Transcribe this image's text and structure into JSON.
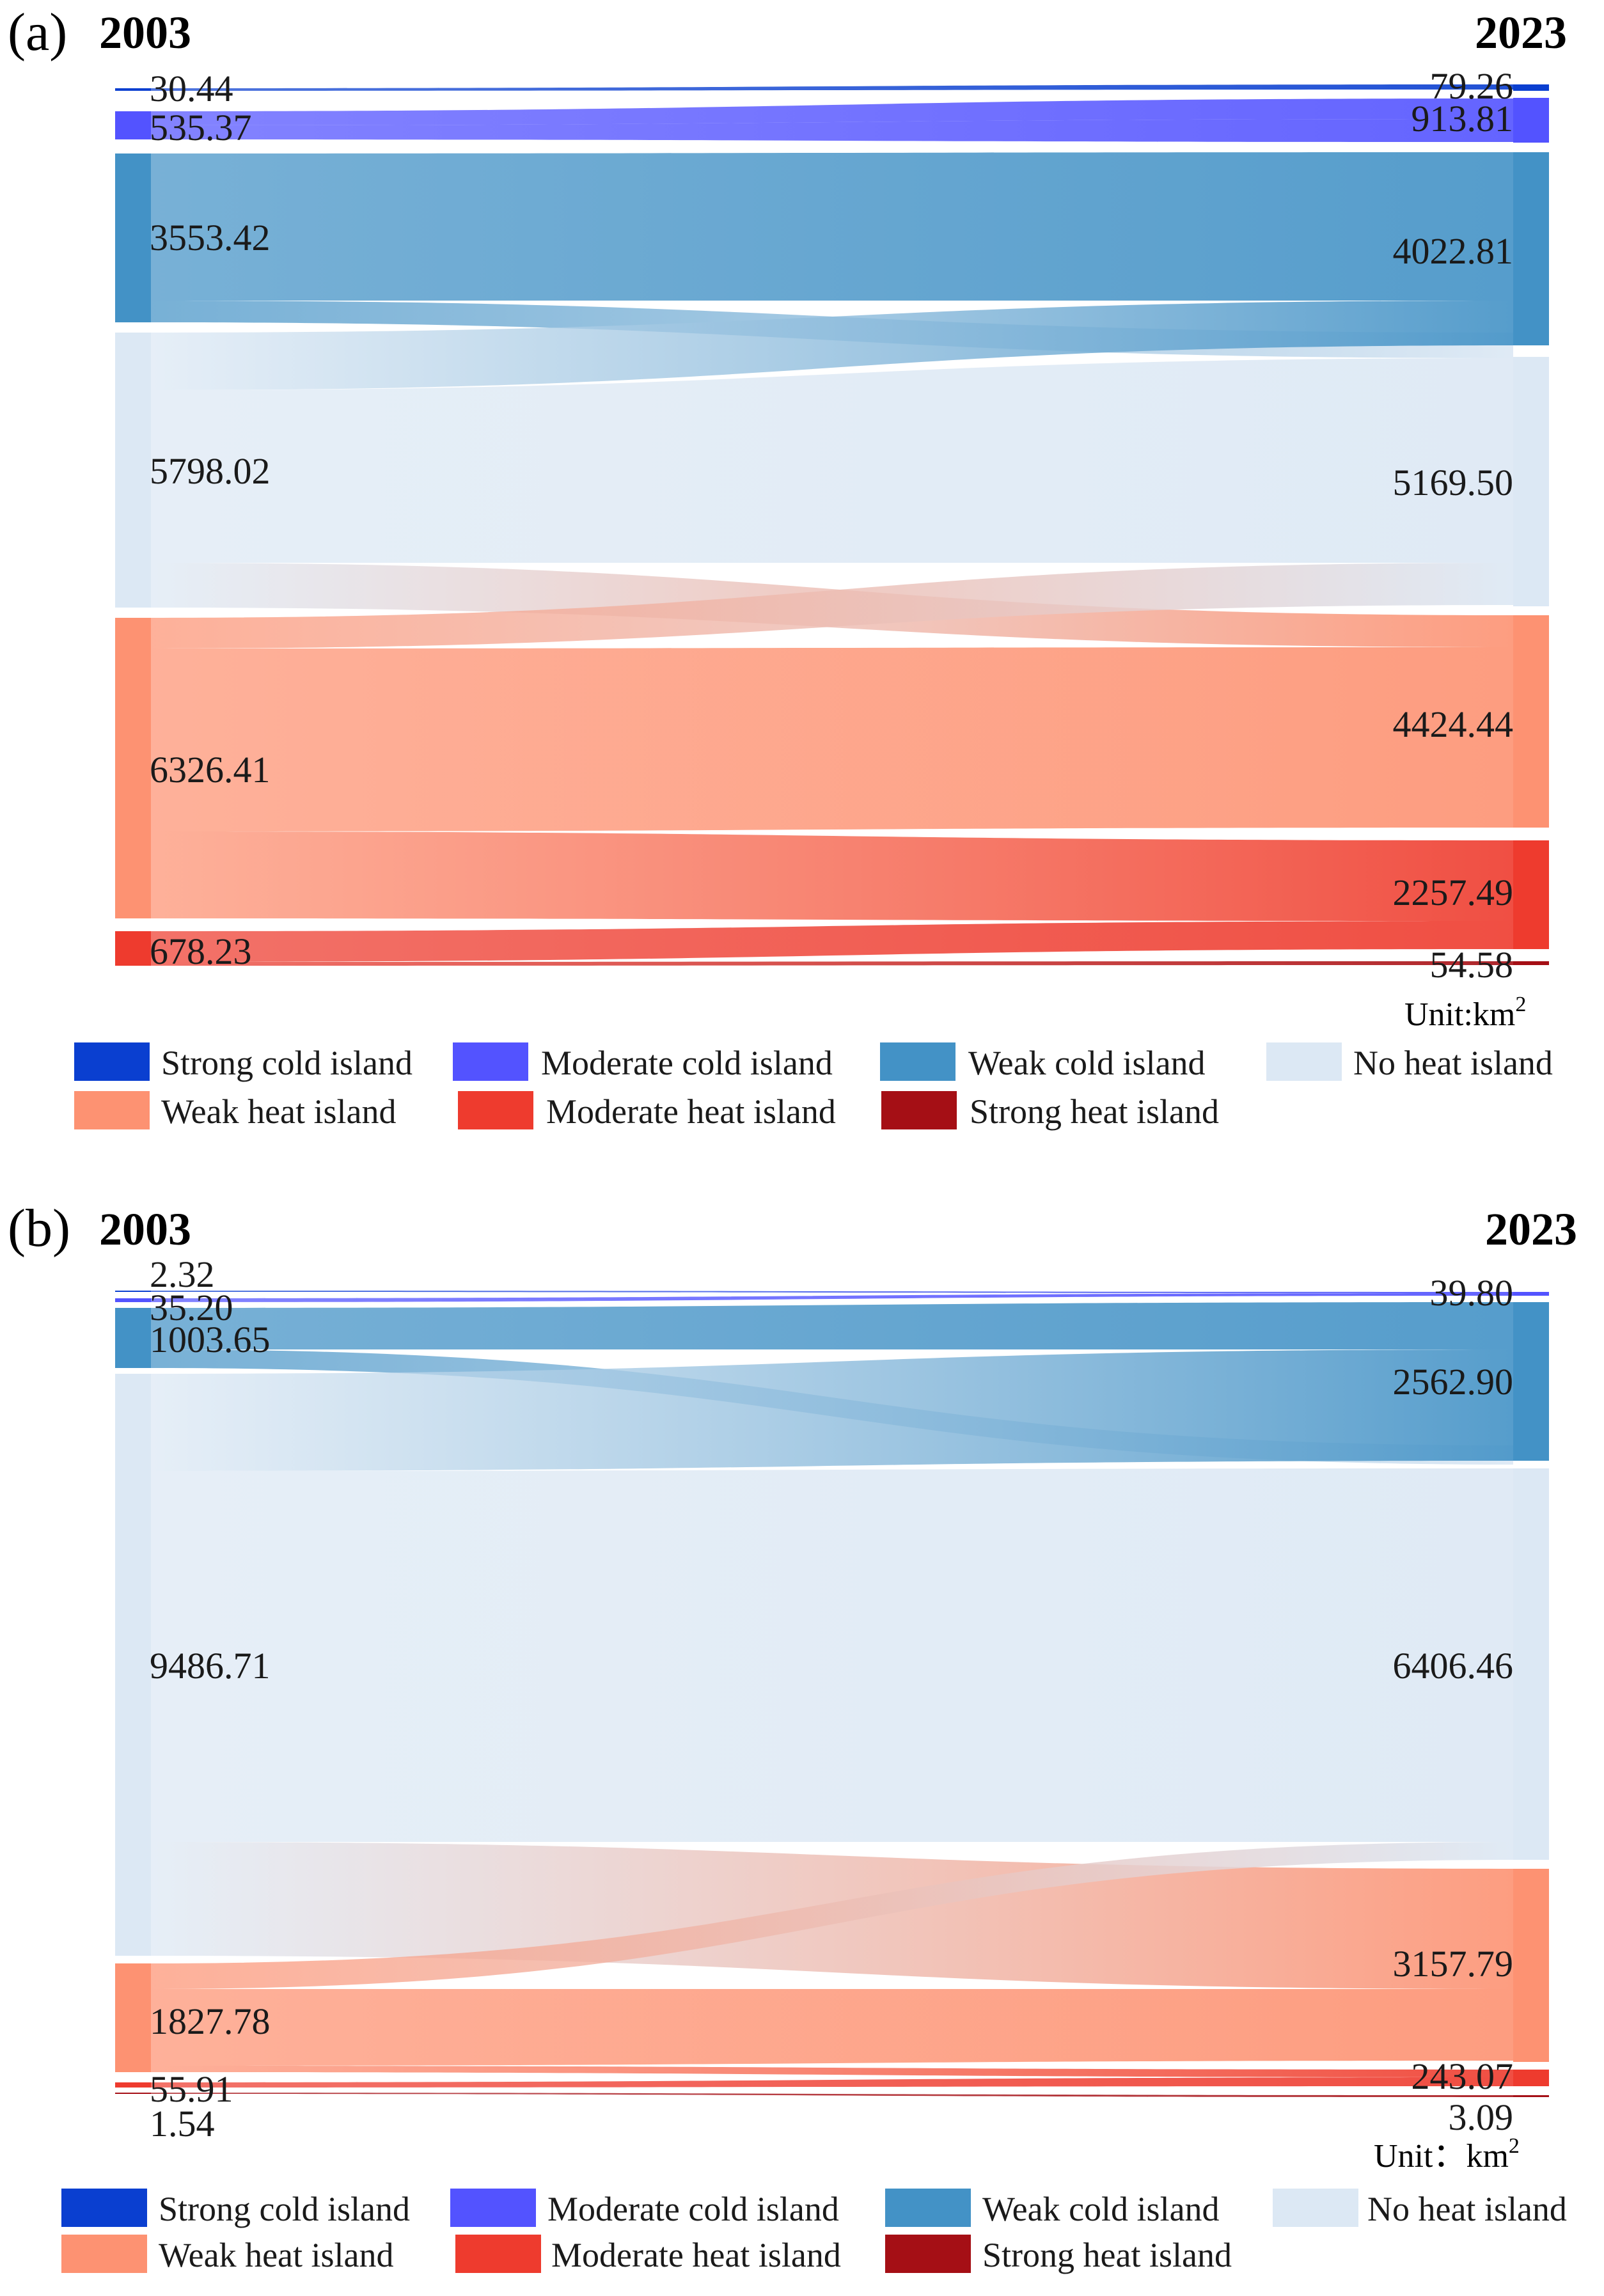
{
  "categories": [
    {
      "key": "strong_cold",
      "label": "Strong cold island",
      "color": "#0a3fd0"
    },
    {
      "key": "moderate_cold",
      "label": "Moderate cold island",
      "color": "#5353ff"
    },
    {
      "key": "weak_cold",
      "label": "Weak cold island",
      "color": "#4392c6"
    },
    {
      "key": "no_heat",
      "label": "No heat island",
      "color": "#dce8f4"
    },
    {
      "key": "weak_heat",
      "label": "Weak heat island",
      "color": "#fd9272"
    },
    {
      "key": "moderate_heat",
      "label": "Moderate heat island",
      "color": "#ee3b2e"
    },
    {
      "key": "strong_heat",
      "label": "Strong heat island",
      "color": "#a50f15"
    }
  ],
  "panels": [
    {
      "label": "(a)",
      "left_year": "2003",
      "right_year": "2023",
      "unit": "Unit:km",
      "unit_sup": "2",
      "left_values": [
        "30.44",
        "535.37",
        "3553.42",
        "5798.02",
        "6326.41",
        "678.23",
        ""
      ],
      "right_values": [
        "79.26",
        "913.81",
        "4022.81",
        "5169.50",
        "4424.44",
        "2257.49",
        "54.58"
      ]
    },
    {
      "label": "(b)",
      "left_year": "2003",
      "right_year": "2023",
      "unit": "Unit：km",
      "unit_sup": "2",
      "left_values": [
        "2.32",
        "35.20",
        "1003.65",
        "9486.71",
        "1827.78",
        "55.91",
        "1.54"
      ],
      "right_values": [
        "",
        "39.80",
        "2562.90",
        "6406.46",
        "3157.79",
        "243.07",
        "3.09"
      ]
    }
  ]
}
